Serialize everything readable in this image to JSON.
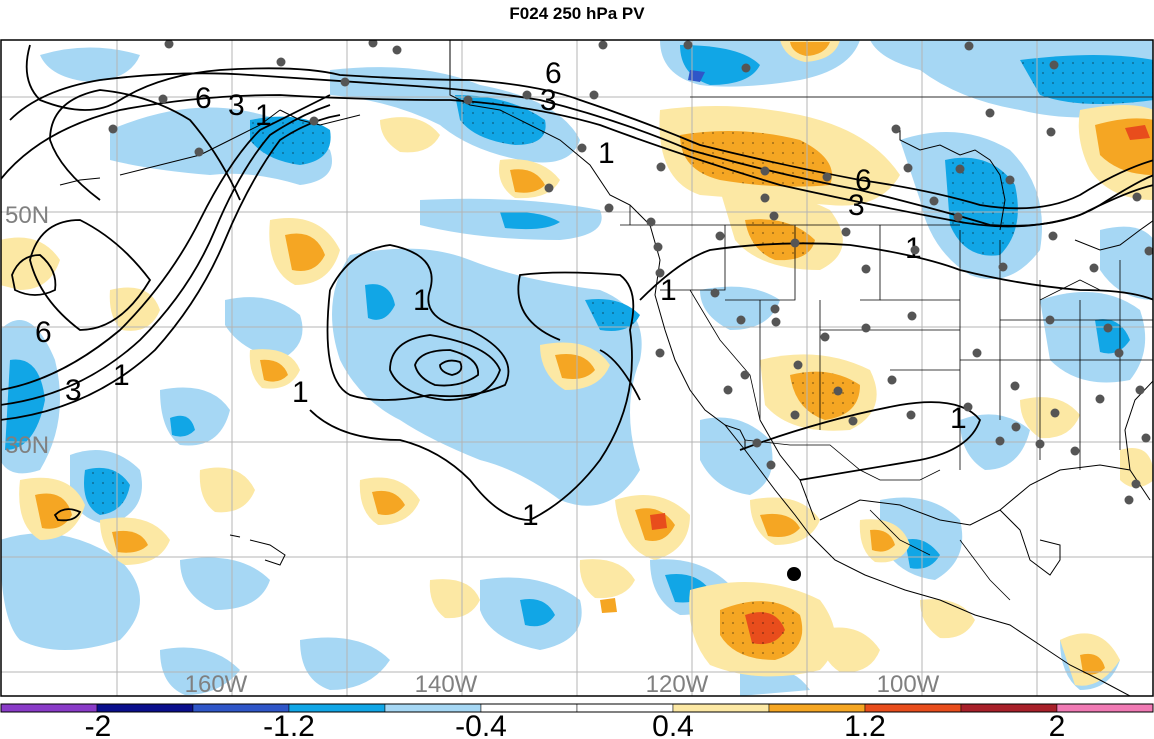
{
  "title": "F024 250 hPa PV",
  "longitude_labels": [
    "160W",
    "140W",
    "120W",
    "100W"
  ],
  "latitude_labels": [
    "50N",
    "30N"
  ],
  "contour_labels": [
    "6",
    "3",
    "1",
    "6",
    "3",
    "1",
    "6",
    "3",
    "1",
    "6",
    "3",
    "1",
    "1",
    "1",
    "1",
    "1",
    "1"
  ],
  "colorbar": {
    "tick_labels": [
      "-2",
      "-1.2",
      "-0.4",
      "0.4",
      "1.2",
      "2"
    ],
    "colors": [
      "#8a3bc8",
      "#0a0f8c",
      "#2f56c8",
      "#11a6e6",
      "#a6d7f4",
      "#ffffff",
      "#ffffff",
      "#fce8a4",
      "#f5a623",
      "#e84d1c",
      "#a8202a",
      "#f07ab4"
    ]
  },
  "shading_colors": {
    "light_blue": "#a6d7f4",
    "blue": "#11a6e6",
    "dark_blue": "#2f56c8",
    "light_yellow": "#fce8a4",
    "orange": "#f5a623",
    "red": "#e84d1c"
  }
}
